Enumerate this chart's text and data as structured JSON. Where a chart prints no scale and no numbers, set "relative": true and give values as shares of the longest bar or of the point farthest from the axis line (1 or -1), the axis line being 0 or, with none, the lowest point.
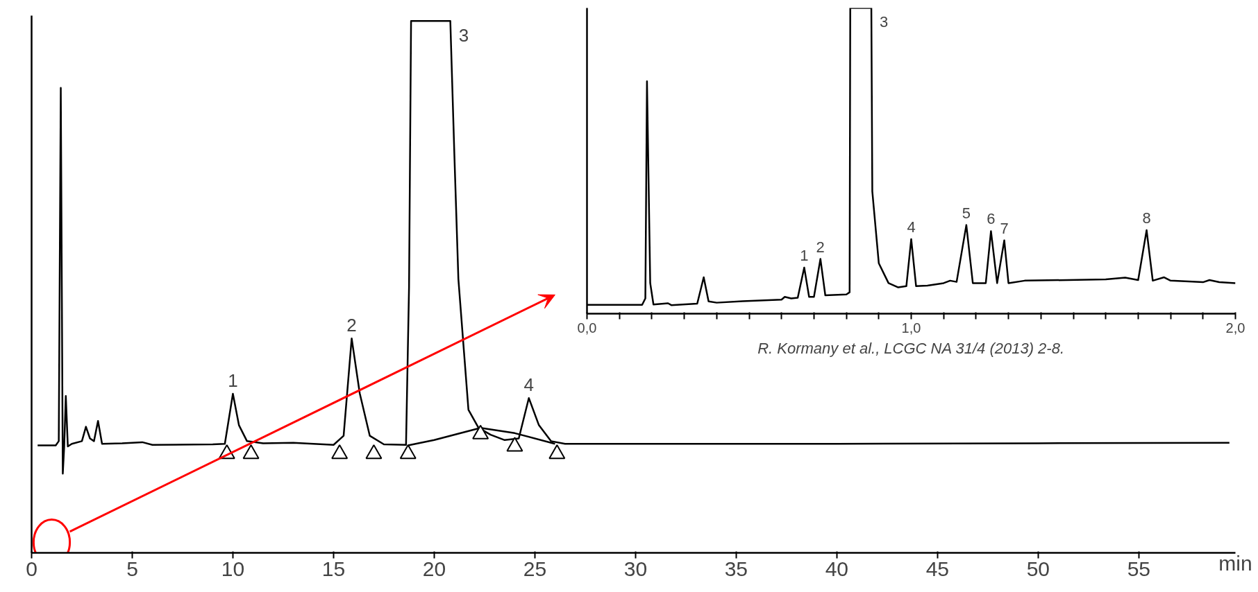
{
  "chart_data": [
    {
      "type": "line",
      "relative": true,
      "xlabel": "min",
      "xlim": [
        0,
        59.8
      ],
      "xticks": [
        0,
        5,
        10,
        15,
        20,
        25,
        30,
        35,
        40,
        45,
        50,
        55
      ],
      "series": [
        {
          "color": "#000000",
          "x": [
            0.3,
            1.2,
            1.35,
            1.45,
            1.55,
            1.62,
            1.7,
            1.8,
            2.0,
            2.5,
            2.7,
            2.9,
            3.1,
            3.3,
            3.5,
            4.5,
            5.5,
            6,
            9,
            9.6,
            10.0,
            10.3,
            10.7,
            11.5,
            13,
            15,
            15.5,
            15.9,
            16.3,
            16.8,
            17.5,
            18.6,
            18.75,
            18.85,
            20.8,
            21.0,
            21.2,
            21.7,
            22.2,
            22.8,
            23.5,
            24.2,
            24.7,
            25.2,
            25.8,
            26.5,
            30,
            40,
            50,
            59.5
          ],
          "values": [
            0.202,
            0.202,
            0.21,
            0.874,
            0.149,
            0.2,
            0.295,
            0.2,
            0.205,
            0.21,
            0.237,
            0.215,
            0.21,
            0.248,
            0.205,
            0.206,
            0.208,
            0.203,
            0.204,
            0.205,
            0.299,
            0.24,
            0.21,
            0.206,
            0.207,
            0.203,
            0.22,
            0.403,
            0.3,
            0.22,
            0.204,
            0.203,
            0.5,
            1.0,
            1.0,
            0.75,
            0.515,
            0.269,
            0.235,
            0.222,
            0.212,
            0.215,
            0.291,
            0.24,
            0.21,
            0.205,
            0.205,
            0.205,
            0.206,
            0.207
          ]
        },
        {
          "color": "#000000",
          "x": [
            18.7,
            20,
            22.3,
            24,
            26
          ],
          "values": [
            0.202,
            0.212,
            0.235,
            0.225,
            0.205
          ]
        },
        {
          "type": "scatter",
          "marker": "triangle",
          "color": "#000000",
          "x": [
            9.7,
            10.9,
            15.3,
            17,
            18.7,
            22.3,
            24,
            26.1
          ],
          "values": [
            0.186,
            0.186,
            0.186,
            0.186,
            0.186,
            0.223,
            0.2,
            0.186
          ]
        }
      ],
      "annotations": [
        {
          "text": "1",
          "x": 10.0,
          "y": 0.299
        },
        {
          "text": "2",
          "x": 15.9,
          "y": 0.403
        },
        {
          "text": "3",
          "x": 20.8,
          "y": 1.0
        },
        {
          "text": "4",
          "x": 24.7,
          "y": 0.291
        }
      ]
    },
    {
      "type": "line",
      "relative": true,
      "xlim": [
        0,
        2
      ],
      "xticks": [
        {
          "value": 0,
          "label": "0,0"
        },
        {
          "value": 0.1,
          "label": null
        },
        {
          "value": 0.2,
          "label": null
        },
        {
          "value": 0.3,
          "label": null
        },
        {
          "value": 0.4,
          "label": null
        },
        {
          "value": 0.5,
          "label": null
        },
        {
          "value": 0.6,
          "label": null
        },
        {
          "value": 0.7,
          "label": null
        },
        {
          "value": 0.8,
          "label": null
        },
        {
          "value": 0.9,
          "label": null
        },
        {
          "value": 1,
          "label": "1,0"
        },
        {
          "value": 1.1,
          "label": null
        },
        {
          "value": 1.2,
          "label": null
        },
        {
          "value": 1.3,
          "label": null
        },
        {
          "value": 1.4,
          "label": null
        },
        {
          "value": 1.5,
          "label": null
        },
        {
          "value": 1.6,
          "label": null
        },
        {
          "value": 1.7,
          "label": null
        },
        {
          "value": 1.8,
          "label": null
        },
        {
          "value": 1.9,
          "label": null
        },
        {
          "value": 2,
          "label": "2,0"
        }
      ],
      "series": [
        {
          "color": "#000000",
          "x": [
            0,
            0.17,
            0.18,
            0.185,
            0.195,
            0.205,
            0.25,
            0.26,
            0.34,
            0.36,
            0.375,
            0.4,
            0.48,
            0.6,
            0.61,
            0.63,
            0.65,
            0.67,
            0.685,
            0.7,
            0.72,
            0.735,
            0.8,
            0.81,
            0.812,
            0.877,
            0.88,
            0.9,
            0.93,
            0.96,
            0.985,
            1.0,
            1.015,
            1.05,
            1.1,
            1.12,
            1.14,
            1.17,
            1.19,
            1.23,
            1.246,
            1.265,
            1.287,
            1.3,
            1.35,
            1.6,
            1.66,
            1.7,
            1.726,
            1.745,
            1.78,
            1.8,
            1.9,
            1.92,
            1.95,
            2.0
          ],
          "values": [
            0.029,
            0.029,
            0.05,
            0.76,
            0.1,
            0.03,
            0.034,
            0.028,
            0.033,
            0.119,
            0.04,
            0.036,
            0.041,
            0.046,
            0.055,
            0.05,
            0.052,
            0.151,
            0.055,
            0.055,
            0.179,
            0.06,
            0.063,
            0.07,
            1.0,
            1.0,
            0.4,
            0.165,
            0.1,
            0.086,
            0.09,
            0.244,
            0.09,
            0.092,
            0.1,
            0.108,
            0.104,
            0.29,
            0.1,
            0.1,
            0.27,
            0.1,
            0.24,
            0.1,
            0.108,
            0.112,
            0.118,
            0.11,
            0.273,
            0.108,
            0.119,
            0.108,
            0.103,
            0.11,
            0.103,
            0.1
          ]
        }
      ],
      "annotations": [
        {
          "text": "1",
          "x": 0.67,
          "y": 0.151
        },
        {
          "text": "2",
          "x": 0.72,
          "y": 0.179
        },
        {
          "text": "3",
          "x": 0.877,
          "y": 1.0
        },
        {
          "text": "4",
          "x": 1.0,
          "y": 0.244
        },
        {
          "text": "5",
          "x": 1.17,
          "y": 0.29
        },
        {
          "text": "6",
          "x": 1.246,
          "y": 0.27
        },
        {
          "text": "7",
          "x": 1.287,
          "y": 0.24
        },
        {
          "text": "8",
          "x": 1.726,
          "y": 0.273
        },
        "R. Kormany et al., LCGC NA 31/4 (2013) 2-8."
      ]
    }
  ]
}
